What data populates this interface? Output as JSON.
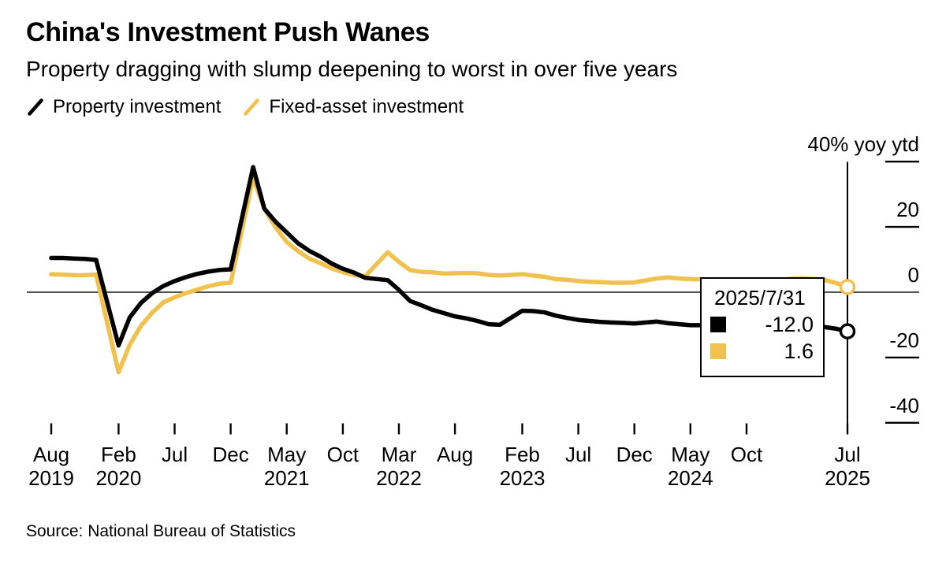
{
  "header": {
    "title": "China's Investment Push Wanes",
    "subtitle": "Property dragging with slump deepening to worst in over five years"
  },
  "legend": {
    "items": [
      {
        "id": "property",
        "label": "Property investment",
        "color": "#000000"
      },
      {
        "id": "fixed-asset",
        "label": "Fixed-asset investment",
        "color": "#F0C14D"
      }
    ]
  },
  "tooltip": {
    "date": "2025/7/31",
    "rows": [
      {
        "series": "Property investment",
        "value": "-12.0",
        "color": "#000000"
      },
      {
        "series": "Fixed-asset investment",
        "value": "1.6",
        "color": "#F0C14D"
      }
    ]
  },
  "source": "Source: National Bureau of Statistics",
  "chart_data": {
    "type": "line",
    "title": "China's Investment Push Wanes",
    "subtitle": "Property dragging with slump deepening to worst in over five years",
    "unit": "% yoy ytd",
    "grid": false,
    "legend_position": "top-left",
    "y_axis": {
      "side": "right",
      "range": [
        -46,
        43
      ],
      "ticks": [
        {
          "value": 40,
          "label": "40% yoy ytd"
        },
        {
          "value": 20,
          "label": "20"
        },
        {
          "value": 0,
          "label": "0"
        },
        {
          "value": -20,
          "label": "-20"
        },
        {
          "value": -40,
          "label": "-40"
        }
      ]
    },
    "x_axis": {
      "range": [
        "2019-08",
        "2025-07"
      ],
      "ticks": [
        {
          "month": "Aug",
          "year": "2019",
          "date": "2019-08"
        },
        {
          "month": "Feb",
          "year": "2020",
          "date": "2020-02"
        },
        {
          "month": "Jul",
          "year": "",
          "date": "2020-07"
        },
        {
          "month": "Dec",
          "year": "",
          "date": "2020-12"
        },
        {
          "month": "May",
          "year": "2021",
          "date": "2021-05"
        },
        {
          "month": "Oct",
          "year": "",
          "date": "2021-10"
        },
        {
          "month": "Mar",
          "year": "2022",
          "date": "2022-03"
        },
        {
          "month": "Aug",
          "year": "",
          "date": "2022-08"
        },
        {
          "month": "Feb",
          "year": "2023",
          "date": "2023-02"
        },
        {
          "month": "Jul",
          "year": "",
          "date": "2023-07"
        },
        {
          "month": "Dec",
          "year": "",
          "date": "2023-12"
        },
        {
          "month": "May",
          "year": "2024",
          "date": "2024-05"
        },
        {
          "month": "Oct",
          "year": "",
          "date": "2024-10"
        },
        {
          "month": "Jul",
          "year": "2025",
          "date": "2025-07"
        }
      ]
    },
    "highlight": {
      "date": "2025-07",
      "label": "2025/7/31",
      "vertical_line": true,
      "end_markers": true
    },
    "x": [
      "2019-08",
      "2019-09",
      "2019-10",
      "2019-11",
      "2019-12",
      "2020-02",
      "2020-03",
      "2020-04",
      "2020-05",
      "2020-06",
      "2020-07",
      "2020-08",
      "2020-09",
      "2020-10",
      "2020-11",
      "2020-12",
      "2021-02",
      "2021-03",
      "2021-04",
      "2021-05",
      "2021-06",
      "2021-07",
      "2021-08",
      "2021-09",
      "2021-10",
      "2021-11",
      "2021-12",
      "2022-02",
      "2022-03",
      "2022-04",
      "2022-05",
      "2022-06",
      "2022-07",
      "2022-08",
      "2022-09",
      "2022-10",
      "2022-11",
      "2022-12",
      "2023-02",
      "2023-03",
      "2023-04",
      "2023-05",
      "2023-06",
      "2023-07",
      "2023-08",
      "2023-09",
      "2023-10",
      "2023-11",
      "2023-12",
      "2024-02",
      "2024-03",
      "2024-04",
      "2024-05",
      "2024-06",
      "2024-07",
      "2024-08",
      "2024-09",
      "2024-10",
      "2024-11",
      "2024-12",
      "2025-02",
      "2025-03",
      "2025-04",
      "2025-05",
      "2025-06",
      "2025-07"
    ],
    "series": [
      {
        "id": "property",
        "name": "Property investment",
        "color": "#000000",
        "end_value": -12.0,
        "values": [
          10.5,
          10.5,
          10.3,
          10.2,
          9.9,
          -16.3,
          -7.7,
          -3.3,
          -0.3,
          1.9,
          3.4,
          4.6,
          5.6,
          6.3,
          6.8,
          7.0,
          38.3,
          25.6,
          21.6,
          18.3,
          15.0,
          12.7,
          10.9,
          8.8,
          7.2,
          6.0,
          4.4,
          3.7,
          0.7,
          -2.7,
          -4.0,
          -5.4,
          -6.4,
          -7.4,
          -8.0,
          -8.8,
          -9.8,
          -10.0,
          -5.7,
          -5.8,
          -6.2,
          -7.2,
          -7.9,
          -8.5,
          -8.8,
          -9.1,
          -9.3,
          -9.4,
          -9.6,
          -9.0,
          -9.5,
          -9.8,
          -10.1,
          -10.1,
          -10.2,
          -10.2,
          -10.1,
          -10.3,
          -10.4,
          -10.6,
          -9.8,
          -9.9,
          -10.3,
          -10.7,
          -11.2,
          -12.0
        ]
      },
      {
        "id": "fixed-asset",
        "name": "Fixed-asset investment",
        "color": "#F0C14D",
        "end_value": 1.6,
        "values": [
          5.5,
          5.4,
          5.2,
          5.2,
          5.4,
          -24.5,
          -16.1,
          -10.3,
          -6.3,
          -3.1,
          -1.6,
          -0.3,
          0.8,
          1.8,
          2.6,
          2.9,
          35.0,
          25.6,
          19.9,
          15.4,
          12.6,
          10.3,
          8.9,
          7.3,
          6.1,
          5.2,
          4.9,
          12.2,
          9.3,
          6.8,
          6.2,
          6.1,
          5.7,
          5.8,
          5.9,
          5.8,
          5.3,
          5.1,
          5.5,
          5.1,
          4.7,
          4.0,
          3.8,
          3.4,
          3.2,
          3.1,
          2.9,
          2.9,
          3.0,
          4.2,
          4.5,
          4.2,
          4.0,
          3.9,
          3.6,
          3.4,
          3.4,
          3.4,
          3.3,
          3.2,
          4.1,
          4.2,
          4.0,
          3.7,
          2.8,
          1.6
        ]
      }
    ]
  }
}
